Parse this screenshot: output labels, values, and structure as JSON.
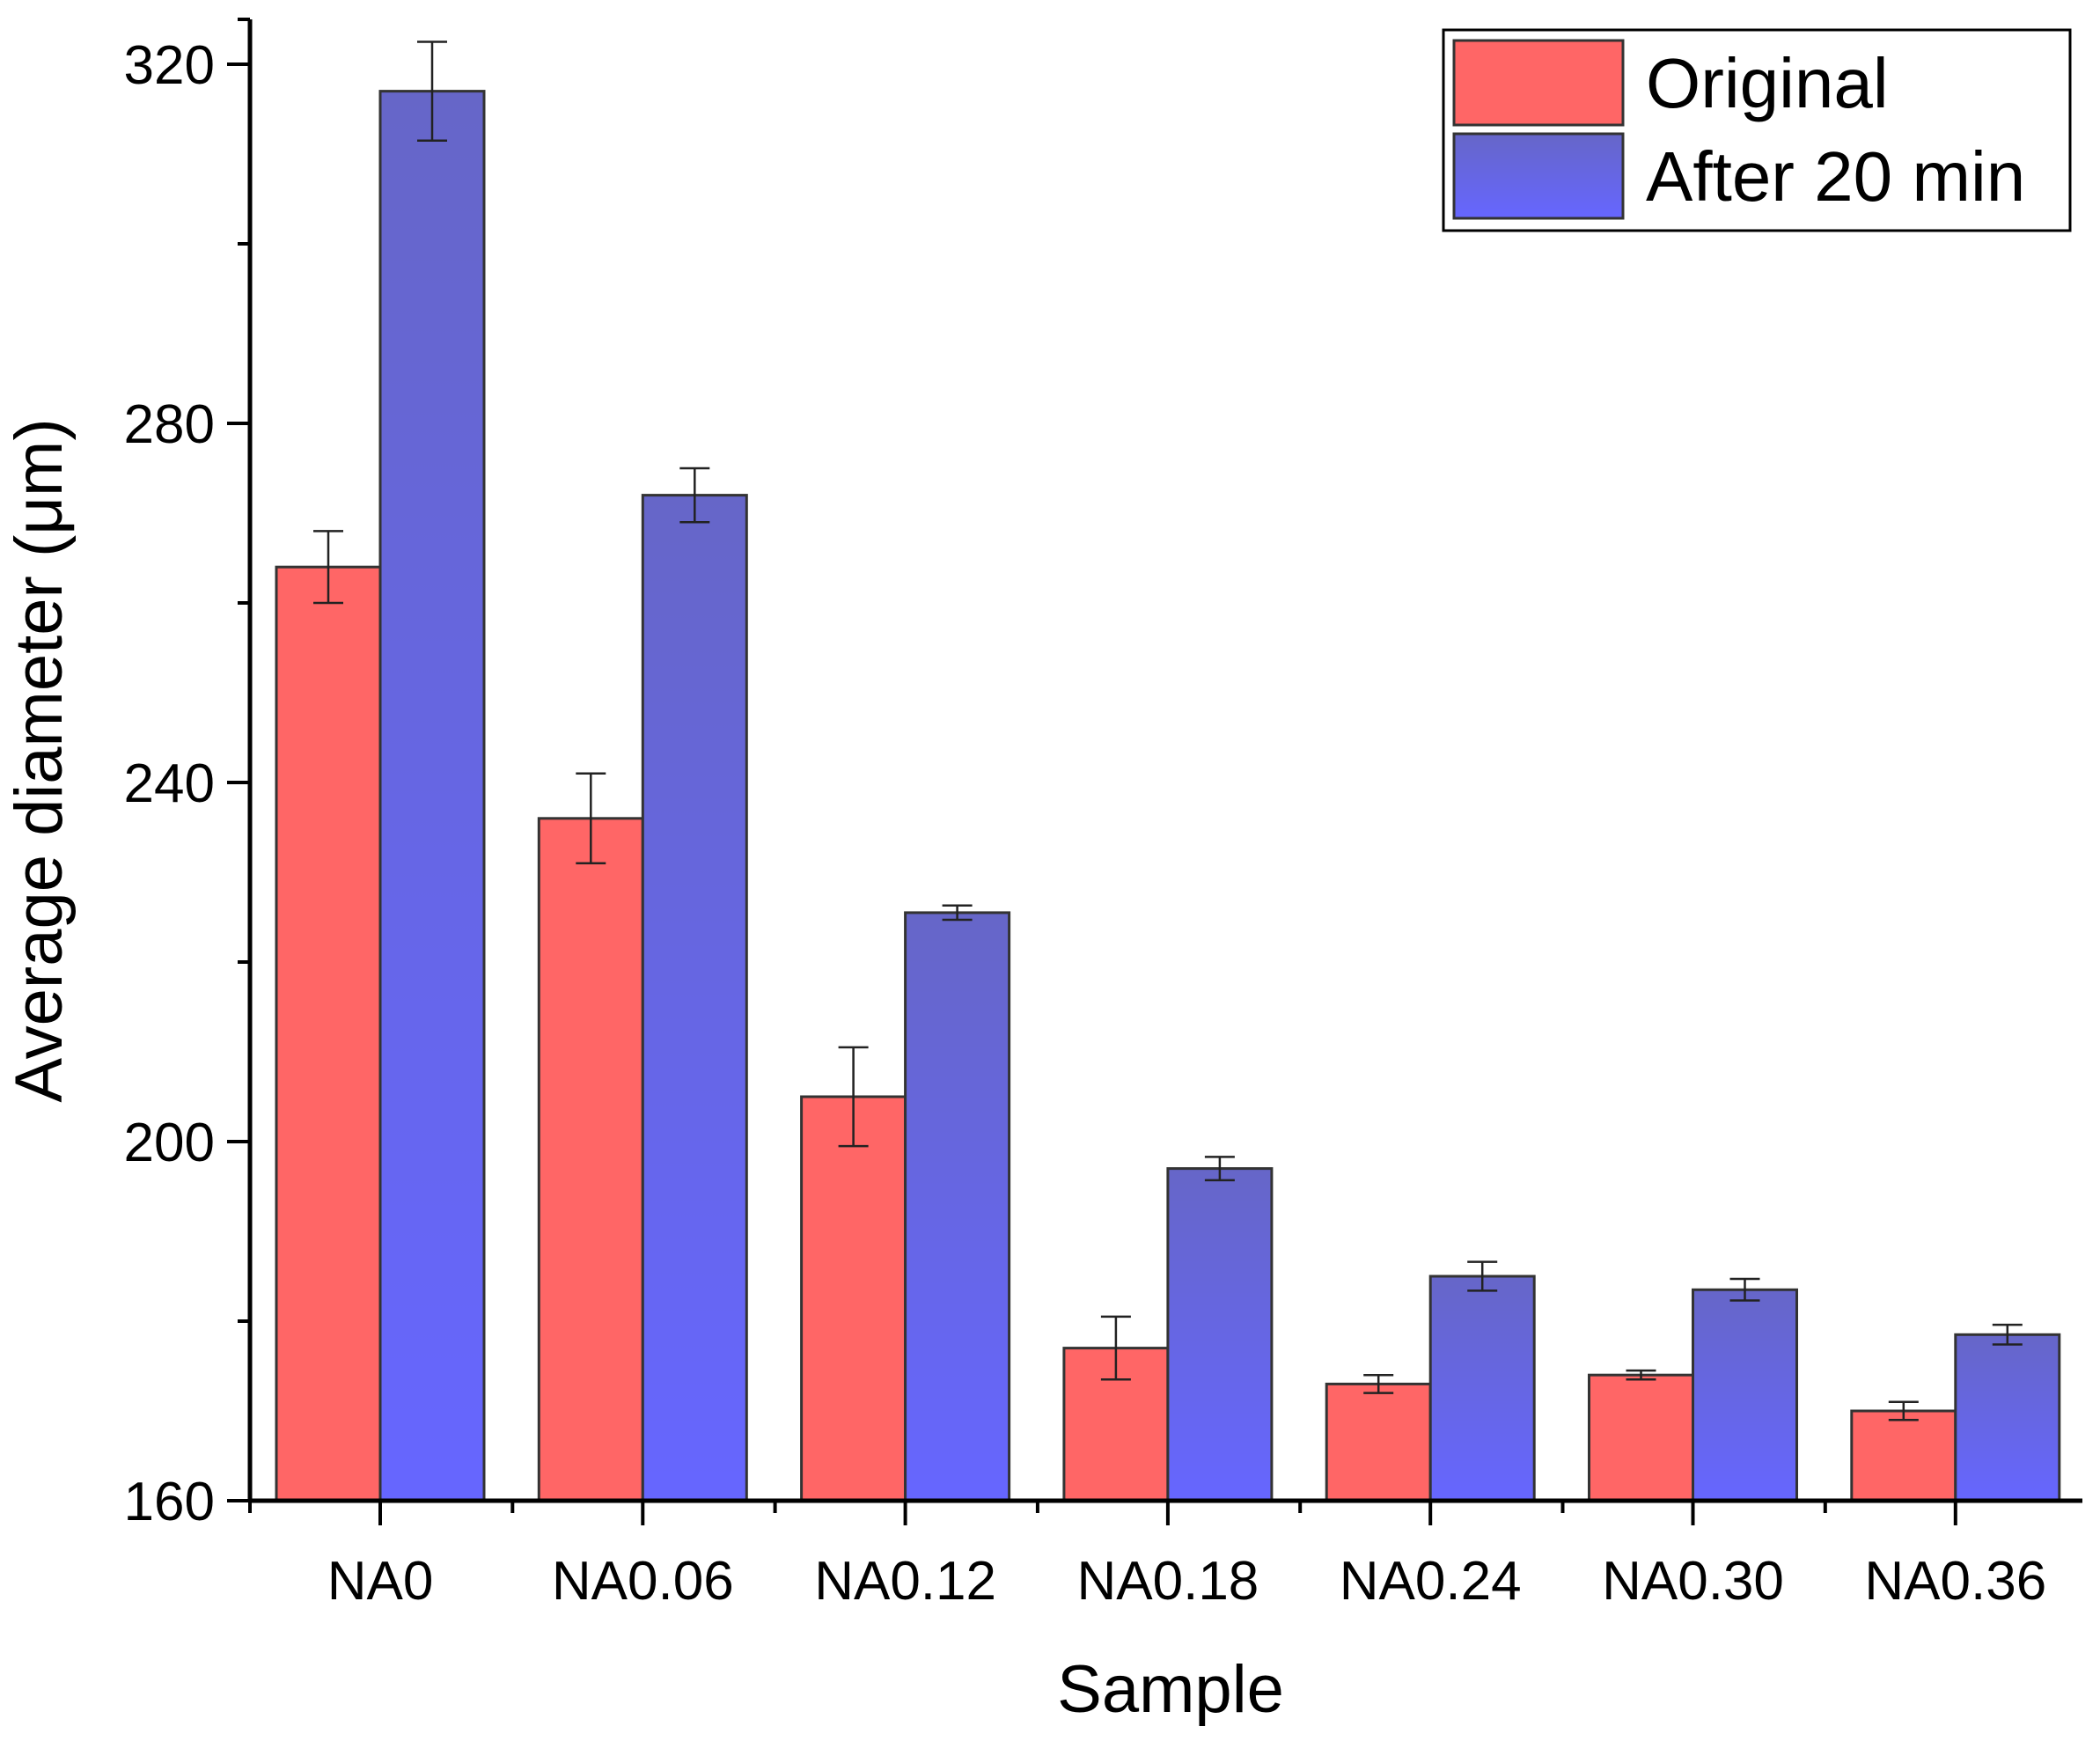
{
  "chart_data": {
    "type": "bar",
    "xlabel": "Sample",
    "ylabel": "Average diameter (μm)",
    "ylim": [
      160,
      325
    ],
    "yticks": [
      160,
      200,
      240,
      280,
      320
    ],
    "grid": false,
    "legend_position": "top-right",
    "categories": [
      "NA0",
      "NA0.06",
      "NA0.12",
      "NA0.18",
      "NA0.24",
      "NA0.30",
      "NA0.36"
    ],
    "series": [
      {
        "name": "Original",
        "color": "#ff6666",
        "values": [
          264,
          236,
          205,
          177,
          173,
          174,
          170
        ],
        "errors": [
          4,
          5,
          5.5,
          3.5,
          1,
          0.5,
          1
        ]
      },
      {
        "name": "After 20 min",
        "color": "#6666ff",
        "values": [
          317,
          272,
          225.5,
          197,
          185,
          183.5,
          178.5
        ],
        "errors": [
          5.5,
          3,
          0.8,
          1.3,
          1.6,
          1.2,
          1.1
        ]
      }
    ]
  }
}
